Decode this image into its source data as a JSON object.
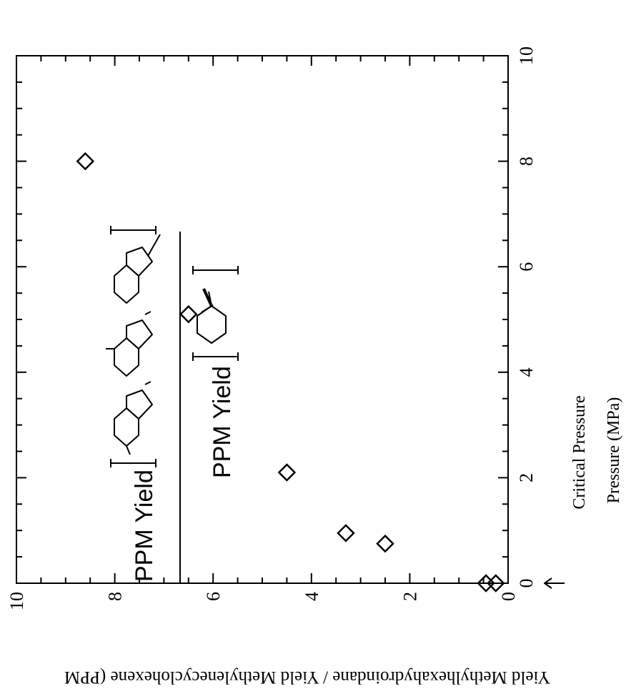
{
  "chart_data": {
    "type": "scatter",
    "xlabel": "Pressure (MPa)",
    "ylabel": "Yield Methylhexahydroindane / Yield Methylenecyclohexene (PPM",
    "xlim": [
      0,
      10
    ],
    "ylim": [
      0,
      10
    ],
    "x_ticks": [
      "0",
      "2",
      "4",
      "6",
      "8",
      "10"
    ],
    "y_ticks": [
      "0",
      "2",
      "4",
      "6",
      "8",
      "10"
    ],
    "annotation": "Critical Pressure",
    "annotation_x": 3.1,
    "ratio_numerator_label": "PPM Yield",
    "ratio_denominator_label": "PPM Yield",
    "marker": "diamond-open",
    "x": [
      0.25,
      0.45,
      2.5,
      3.3,
      4.5,
      6.5,
      8.6
    ],
    "y": [
      0.0,
      0.0,
      0.75,
      0.95,
      2.1,
      5.1,
      8.0
    ]
  }
}
